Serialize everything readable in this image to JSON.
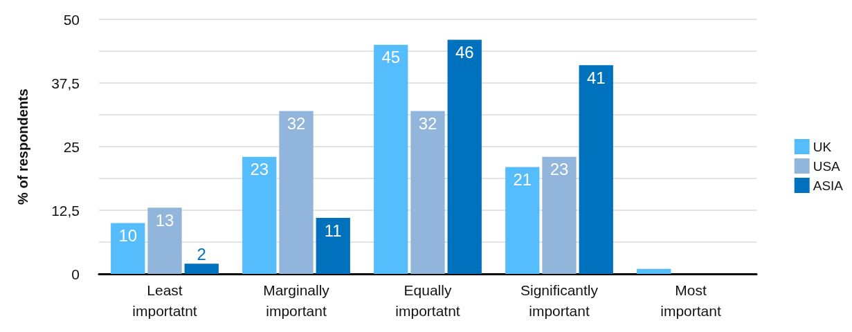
{
  "chart_data": {
    "type": "bar",
    "ylabel": "% of respondents",
    "categories": [
      "Least\nimportatnt",
      "Marginally\nimportant",
      "Equally\nimportatnt",
      "Significantly\nimportant",
      "Most\nimportant"
    ],
    "series": [
      {
        "name": "UK",
        "color": "#56bdfc",
        "values": [
          10,
          23,
          45,
          21,
          1
        ],
        "value_labels": [
          "10",
          "23",
          "45",
          "21",
          null
        ]
      },
      {
        "name": "USA",
        "color": "#92b5dc",
        "values": [
          13,
          32,
          32,
          23,
          0
        ],
        "value_labels": [
          "13",
          "32",
          "32",
          "23",
          null
        ]
      },
      {
        "name": "ASIA",
        "color": "#0071bc",
        "values": [
          2,
          11,
          46,
          41,
          0
        ],
        "value_labels": [
          "2",
          "11",
          "46",
          "41",
          null
        ]
      }
    ],
    "ylim": [
      0,
      50
    ],
    "yticks": [
      0,
      {
        "value": 6.25,
        "label": null
      },
      {
        "value": 12.5,
        "label": "12,5"
      },
      {
        "value": 18.75,
        "label": null
      },
      25,
      {
        "value": 31.25,
        "label": null
      },
      {
        "value": 37.5,
        "label": "37,5"
      },
      {
        "value": 43.75,
        "label": null
      },
      50
    ],
    "grid": "y",
    "legend": "right"
  }
}
